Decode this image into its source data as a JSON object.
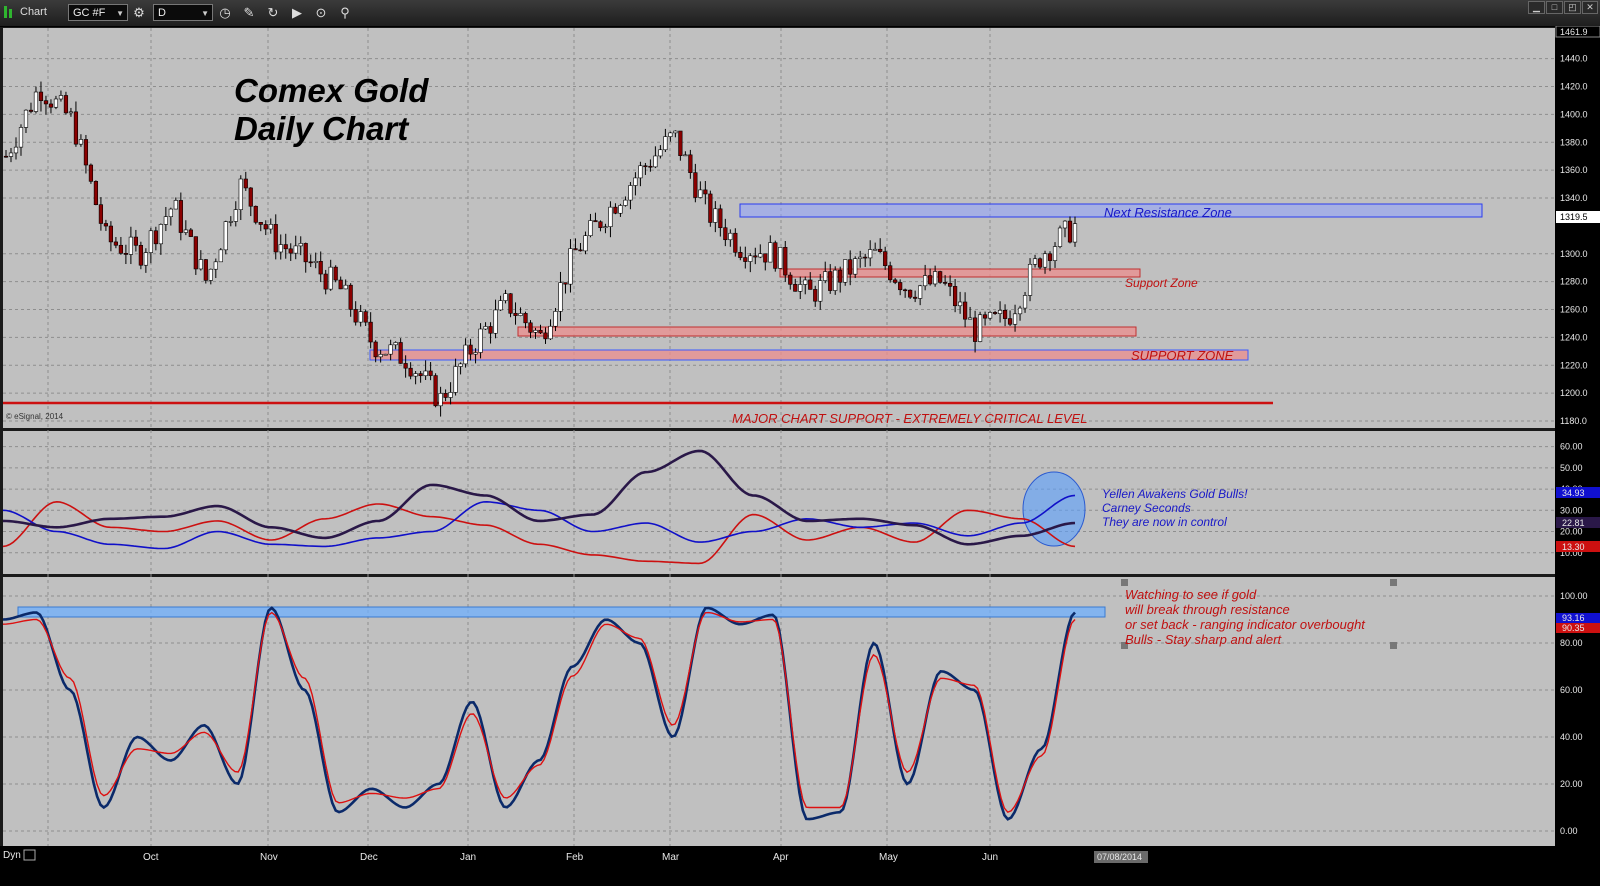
{
  "toolbar": {
    "window_title": "Chart",
    "symbol": "GC #F",
    "interval": "D",
    "icons": [
      "settings-icon",
      "refresh-icon",
      "pencil-icon",
      "cycle-icon",
      "play-icon",
      "zoom-icon",
      "link-icon"
    ]
  },
  "chart": {
    "title_line1": "Comex Gold",
    "title_line2": "Daily Chart",
    "copyright": "© eSignal, 2014",
    "last_price_label": "1319.5",
    "top_price_label": "1461.9",
    "months": [
      "Oct",
      "Nov",
      "Dec",
      "Jan",
      "Feb",
      "Mar",
      "Apr",
      "May",
      "Jun"
    ],
    "date_label": "07/08/2014",
    "dyn_label": "Dyn",
    "colors": {
      "up_candle": "#ffffff",
      "down_candle": "#8b0000",
      "support": "#e07070",
      "resistance": "#4a6bff"
    }
  },
  "annotations": {
    "resistance": "Next Resistance Zone",
    "support": "Support Zone",
    "support_zone": "SUPPORT ZONE",
    "major_support": "MAJOR CHART SUPPORT - EXTREMELY CRITICAL LEVEL",
    "dmi_line1": "Yellen Awakens Gold Bulls!",
    "dmi_line2": "Carney Seconds",
    "dmi_line3": "They are now in control",
    "stoch_line1": "Watching to see if gold",
    "stoch_line2": "will break through resistance",
    "stoch_line3": "or set back - ranging indicator overbought",
    "stoch_line4": "Bulls - Stay sharp and alert"
  },
  "price_axis": [
    "1440.0",
    "1420.0",
    "1400.0",
    "1380.0",
    "1360.0",
    "1340.0",
    "1300.0",
    "1280.0",
    "1260.0",
    "1240.0",
    "1220.0",
    "1200.0",
    "1180.0"
  ],
  "dmi_axis": {
    "ticks": [
      "60.00",
      "50.00",
      "40.00",
      "30.00",
      "20.00",
      "10.00"
    ],
    "values": [
      "34.93",
      "22.81",
      "13.30"
    ]
  },
  "stoch_axis": {
    "ticks": [
      "100.00",
      "80.00",
      "60.00",
      "40.00",
      "20.00",
      "0.00"
    ],
    "values": [
      "93.16",
      "90.35"
    ]
  },
  "chart_data": [
    {
      "type": "candlestick",
      "title": "Comex Gold Daily Chart",
      "x_range": [
        "Sep 2013",
        "Jun 2014"
      ],
      "ylim": [
        1175,
        1462
      ],
      "key_levels": {
        "resistance_zone": [
          1320,
          1330
        ],
        "support_zone": [
          1275,
          1280
        ],
        "support_mid": [
          1232,
          1238
        ],
        "support_zone_low": [
          1215,
          1222
        ],
        "major_support": 1182
      },
      "close_path": [
        1370,
        1420,
        1395,
        1310,
        1300,
        1335,
        1280,
        1350,
        1310,
        1295,
        1275,
        1235,
        1225,
        1195,
        1235,
        1265,
        1240,
        1300,
        1330,
        1360,
        1385,
        1330,
        1305,
        1300,
        1270,
        1285,
        1300,
        1275,
        1280,
        1245,
        1255,
        1300,
        1320
      ]
    },
    {
      "type": "line",
      "title": "",
      "series": [
        {
          "name": "",
          "color": "#1010c8",
          "last": 34.93,
          "values": [
            30,
            20,
            14,
            12,
            20,
            14,
            13,
            17,
            20,
            34,
            30,
            20,
            24,
            15,
            20,
            26,
            22,
            24,
            18,
            24,
            37
          ]
        },
        {
          "name": "",
          "color": "#2a1848",
          "last": 22.81,
          "values": [
            25,
            22,
            26,
            27,
            32,
            22,
            17,
            25,
            42,
            37,
            25,
            28,
            48,
            58,
            37,
            25,
            26,
            23,
            14,
            18,
            24
          ]
        },
        {
          "name": "",
          "color": "#cc1010",
          "last": 13.3,
          "values": [
            13,
            34,
            22,
            20,
            25,
            16,
            26,
            33,
            27,
            23,
            14,
            9,
            6,
            5,
            28,
            16,
            22,
            15,
            30,
            26,
            13
          ]
        }
      ],
      "ylim": [
        0,
        65
      ]
    },
    {
      "type": "line",
      "title": "",
      "series": [
        {
          "name": "",
          "color": "#0b2a6a",
          "last": 93.16,
          "values": [
            90,
            93,
            60,
            10,
            40,
            30,
            45,
            20,
            95,
            60,
            8,
            18,
            10,
            20,
            55,
            10,
            30,
            70,
            90,
            80,
            40,
            95,
            88,
            92,
            5,
            8,
            80,
            20,
            68,
            60,
            5,
            35,
            93
          ]
        },
        {
          "name": "",
          "color": "#dd1010",
          "last": 90.35,
          "values": [
            88,
            90,
            65,
            15,
            35,
            33,
            42,
            25,
            93,
            65,
            12,
            16,
            14,
            18,
            50,
            14,
            28,
            66,
            88,
            82,
            45,
            93,
            89,
            90,
            10,
            10,
            75,
            25,
            65,
            62,
            8,
            32,
            90
          ]
        }
      ],
      "ylim": [
        0,
        105
      ]
    }
  ]
}
